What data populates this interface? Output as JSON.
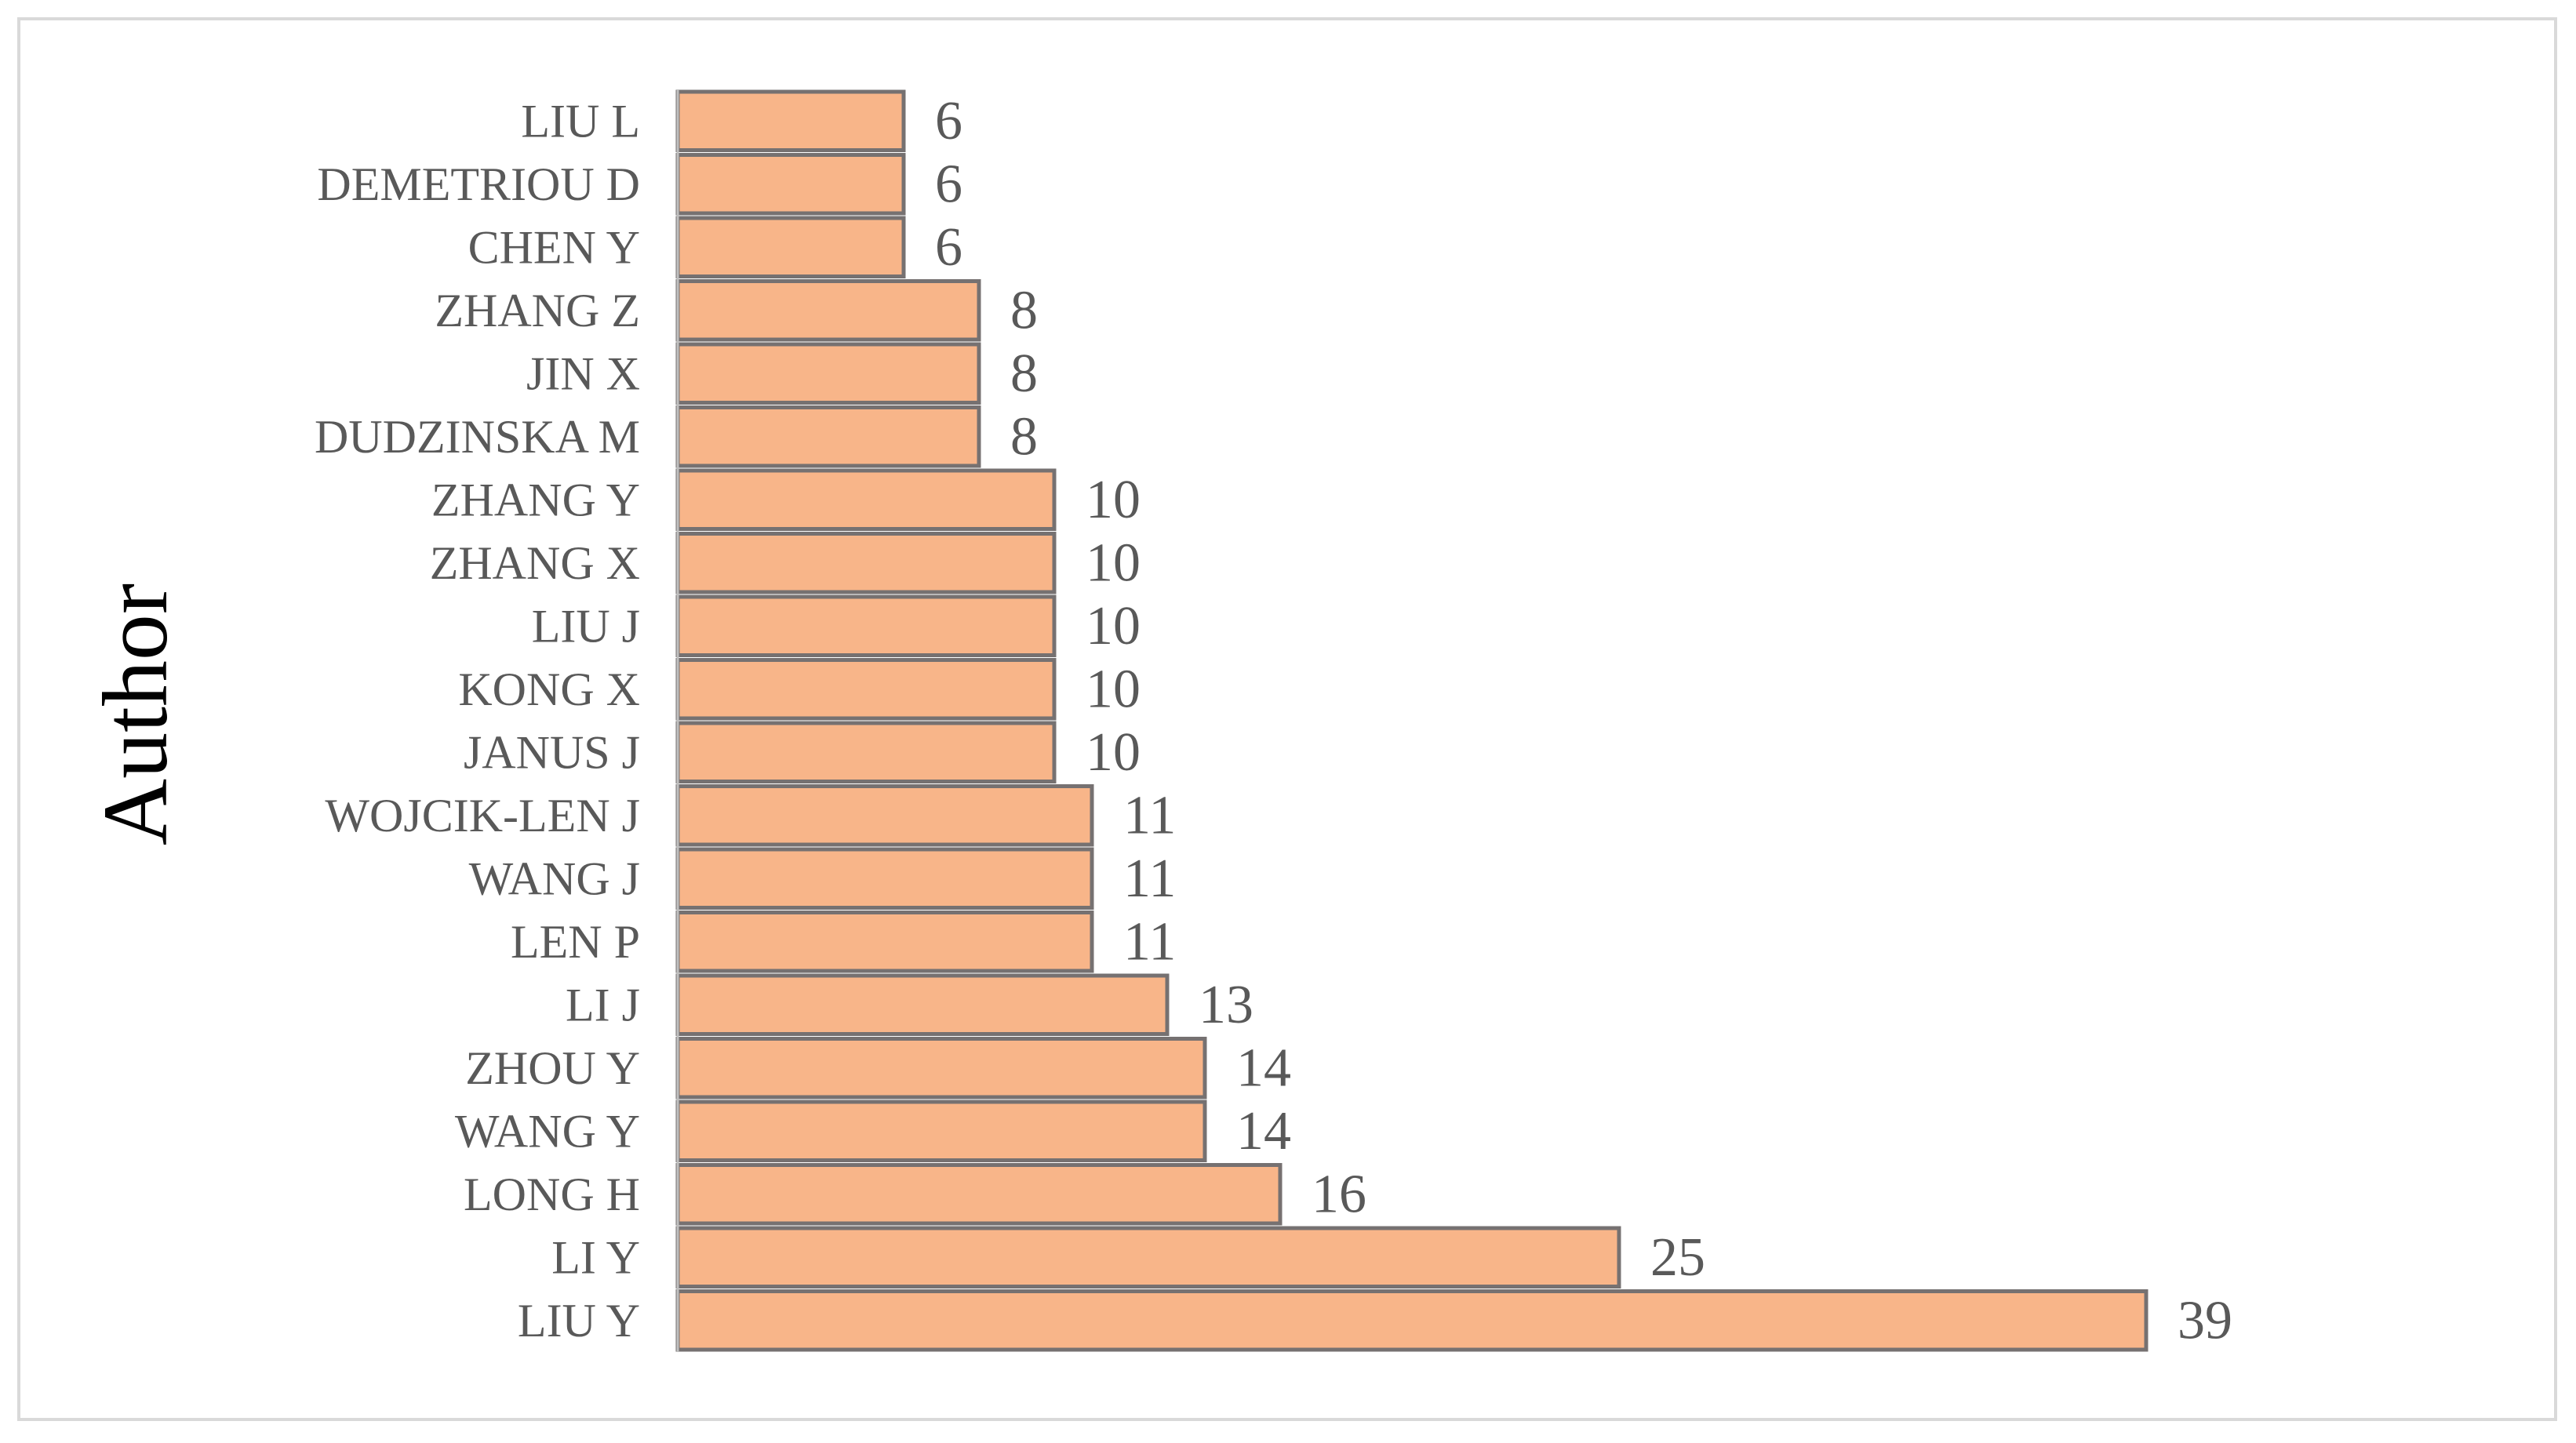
{
  "chart_data": {
    "type": "bar",
    "orientation": "horizontal",
    "ylabel": "Author",
    "xlabel": "",
    "categories": [
      "LIU Y",
      "LI Y",
      "LONG H",
      "WANG Y",
      "ZHOU Y",
      "LI J",
      "LEN P",
      "WANG J",
      "WOJCIK-LEN J",
      "JANUS J",
      "KONG X",
      "LIU J",
      "ZHANG X",
      "ZHANG Y",
      "DUDZINSKA M",
      "JIN X",
      "ZHANG Z",
      "CHEN Y",
      "DEMETRIOU D",
      "LIU L"
    ],
    "values": [
      39,
      25,
      16,
      14,
      14,
      13,
      11,
      11,
      11,
      10,
      10,
      10,
      10,
      10,
      8,
      8,
      8,
      6,
      6,
      6
    ],
    "xlim": [
      0,
      39
    ],
    "grid": false,
    "legend": "none",
    "data_labels": true,
    "colors": {
      "bar_fill": "#F8B589",
      "bar_stroke": "#767171",
      "label_text": "#595959",
      "axis": "#bfbfbf"
    }
  }
}
